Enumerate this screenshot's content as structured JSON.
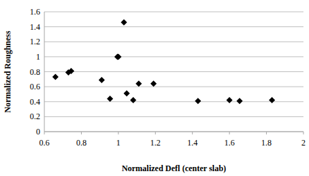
{
  "chart_data": {
    "type": "scatter",
    "x_label": "Normalized Defl (center slab)",
    "y_label": "Normalized Roughness",
    "x": [
      0.66,
      0.73,
      0.745,
      0.91,
      0.955,
      0.995,
      1.0,
      1.03,
      1.045,
      1.08,
      1.11,
      1.19,
      1.43,
      1.6,
      1.655,
      1.83
    ],
    "series": [
      {
        "color": "#000000",
        "marker": "diamond",
        "values": [
          0.73,
          0.79,
          0.81,
          0.69,
          0.44,
          1.0,
          1.0,
          1.46,
          0.51,
          0.42,
          0.64,
          0.64,
          0.41,
          0.42,
          0.41,
          0.42
        ]
      }
    ],
    "xlim": [
      0.6,
      2
    ],
    "xticks": [
      0.6,
      0.8,
      1,
      1.2,
      1.4,
      1.6,
      1.8,
      2
    ],
    "ylim": [
      0,
      1.6
    ],
    "yticks": [
      0,
      0.2,
      0.4,
      0.6,
      0.8,
      1,
      1.2,
      1.4,
      1.6
    ],
    "grid": true
  }
}
